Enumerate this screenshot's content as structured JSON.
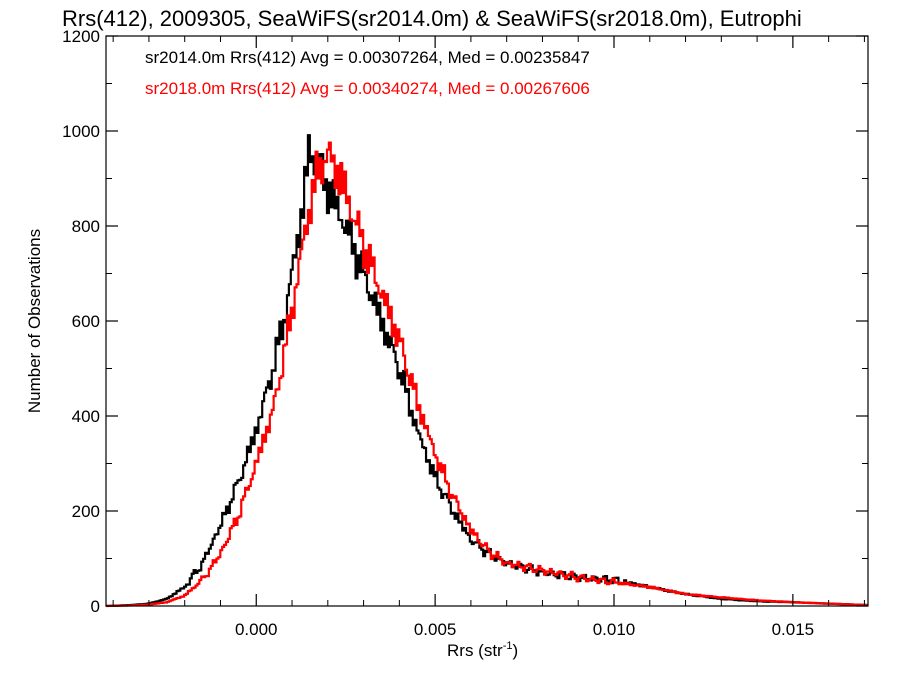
{
  "chart_data": {
    "type": "histogram",
    "title": "Rrs(412), 2009305, SeaWiFS(sr2014.0m) & SeaWiFS(sr2018.0m), Eutrophi",
    "xlabel": {
      "base": "Rrs (str",
      "sup": "-1",
      "close": ")"
    },
    "ylabel": "Number of Observations",
    "xlim": [
      -0.0042,
      0.0171
    ],
    "ylim": [
      0,
      1200
    ],
    "x_ticks": [
      0.0,
      0.005,
      0.01,
      0.015
    ],
    "x_tick_labels": [
      "0.000",
      "0.005",
      "0.010",
      "0.015"
    ],
    "y_ticks": [
      0,
      200,
      400,
      600,
      800,
      1000,
      1200
    ],
    "y_tick_labels": [
      "0",
      "200",
      "400",
      "600",
      "800",
      "1000",
      "1200"
    ],
    "grid": false,
    "legend_position": "top-left",
    "series": [
      {
        "name": "sr2014.0m",
        "legend_text": "sr2014.0m Rrs(412) Avg = 0.00307264, Med = 0.00235847",
        "color": "#000000",
        "points": [
          [
            -0.0042,
            0
          ],
          [
            -0.0035,
            2
          ],
          [
            -0.003,
            5
          ],
          [
            -0.0025,
            15
          ],
          [
            -0.002,
            40
          ],
          [
            -0.0015,
            90
          ],
          [
            -0.001,
            170
          ],
          [
            -0.0005,
            260
          ],
          [
            0.0,
            370
          ],
          [
            0.0004,
            480
          ],
          [
            0.0008,
            610
          ],
          [
            0.0012,
            790
          ],
          [
            0.0015,
            960
          ],
          [
            0.0017,
            940
          ],
          [
            0.002,
            880
          ],
          [
            0.0025,
            800
          ],
          [
            0.003,
            700
          ],
          [
            0.0035,
            600
          ],
          [
            0.004,
            500
          ],
          [
            0.0045,
            370
          ],
          [
            0.005,
            270
          ],
          [
            0.0055,
            200
          ],
          [
            0.006,
            140
          ],
          [
            0.0065,
            110
          ],
          [
            0.007,
            90
          ],
          [
            0.008,
            70
          ],
          [
            0.009,
            60
          ],
          [
            0.01,
            55
          ],
          [
            0.011,
            40
          ],
          [
            0.012,
            25
          ],
          [
            0.013,
            15
          ],
          [
            0.014,
            10
          ],
          [
            0.015,
            8
          ],
          [
            0.016,
            5
          ],
          [
            0.0171,
            2
          ]
        ]
      },
      {
        "name": "sr2018.0m",
        "legend_text": "sr2018.0m Rrs(412) Avg = 0.00340274, Med = 0.00267606",
        "color": "#ff0000",
        "points": [
          [
            -0.0042,
            0
          ],
          [
            -0.0035,
            1
          ],
          [
            -0.003,
            3
          ],
          [
            -0.0025,
            8
          ],
          [
            -0.002,
            22
          ],
          [
            -0.0015,
            55
          ],
          [
            -0.001,
            110
          ],
          [
            -0.0005,
            190
          ],
          [
            0.0,
            300
          ],
          [
            0.0005,
            420
          ],
          [
            0.001,
            620
          ],
          [
            0.0013,
            760
          ],
          [
            0.0016,
            880
          ],
          [
            0.0019,
            950
          ],
          [
            0.0022,
            930
          ],
          [
            0.0025,
            870
          ],
          [
            0.003,
            760
          ],
          [
            0.0035,
            660
          ],
          [
            0.004,
            560
          ],
          [
            0.0045,
            430
          ],
          [
            0.005,
            320
          ],
          [
            0.0055,
            230
          ],
          [
            0.006,
            160
          ],
          [
            0.0065,
            115
          ],
          [
            0.007,
            90
          ],
          [
            0.008,
            75
          ],
          [
            0.009,
            60
          ],
          [
            0.01,
            50
          ],
          [
            0.011,
            40
          ],
          [
            0.012,
            25
          ],
          [
            0.013,
            18
          ],
          [
            0.014,
            12
          ],
          [
            0.015,
            8
          ],
          [
            0.016,
            5
          ],
          [
            0.0171,
            2
          ]
        ]
      }
    ]
  }
}
